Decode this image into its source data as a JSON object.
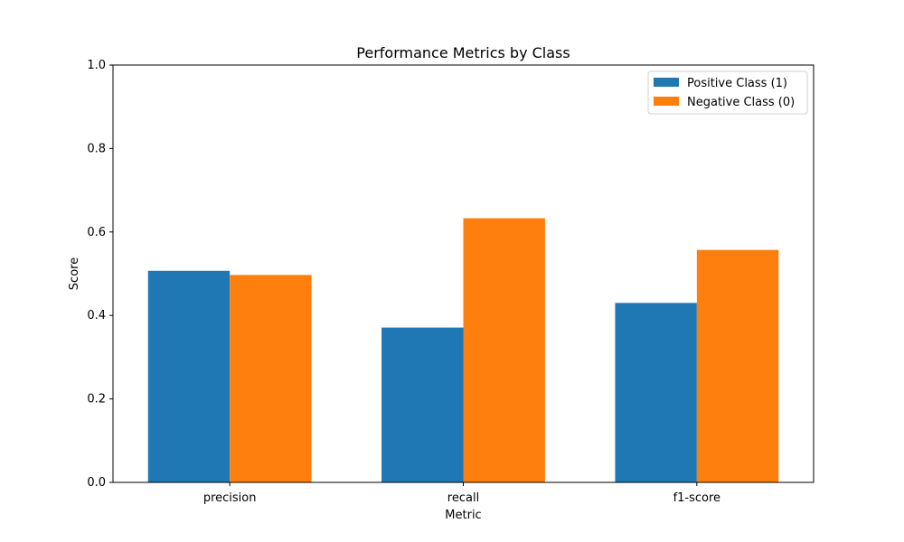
{
  "chart_data": {
    "type": "bar",
    "title": "Performance Metrics by Class",
    "xlabel": "Metric",
    "ylabel": "Score",
    "categories": [
      "precision",
      "recall",
      "f1-score"
    ],
    "series": [
      {
        "name": "Positive Class (1)",
        "color": "#1f77b4",
        "values": [
          0.507,
          0.371,
          0.43
        ]
      },
      {
        "name": "Negative Class (0)",
        "color": "#ff7f0e",
        "values": [
          0.497,
          0.633,
          0.557
        ]
      }
    ],
    "ylim": [
      0,
      1.0
    ],
    "yticks": [
      "0.0",
      "0.2",
      "0.4",
      "0.6",
      "0.8",
      "1.0"
    ],
    "grid": false,
    "legend_position": "upper-right"
  }
}
